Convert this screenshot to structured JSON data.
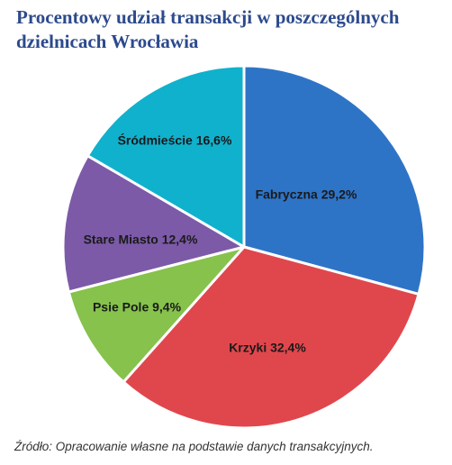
{
  "chart_data": {
    "type": "pie",
    "title": "Procentowy udział transakcji w poszczególnych dzielnicach Wrocławia",
    "slices": [
      {
        "label": "Fabryczna 29,2%",
        "name": "Fabryczna",
        "value": 29.2,
        "color": "#2e74c6"
      },
      {
        "label": "Krzyki 32,4%",
        "name": "Krzyki",
        "value": 32.4,
        "color": "#e0474c"
      },
      {
        "label": "Psie Pole 9,4%",
        "name": "Psie Pole",
        "value": 9.4,
        "color": "#86c24c"
      },
      {
        "label": "Stare Miasto 12,4%",
        "name": "Stare Miasto",
        "value": 12.4,
        "color": "#7c5aa8"
      },
      {
        "label": "Śródmieście 16,6%",
        "name": "Śródmieście",
        "value": 16.6,
        "color": "#10b1cd"
      }
    ],
    "start": "top",
    "direction": "clockwise"
  },
  "source": "Źródło: Opracowanie własne na podstawie danych transakcyjnych."
}
